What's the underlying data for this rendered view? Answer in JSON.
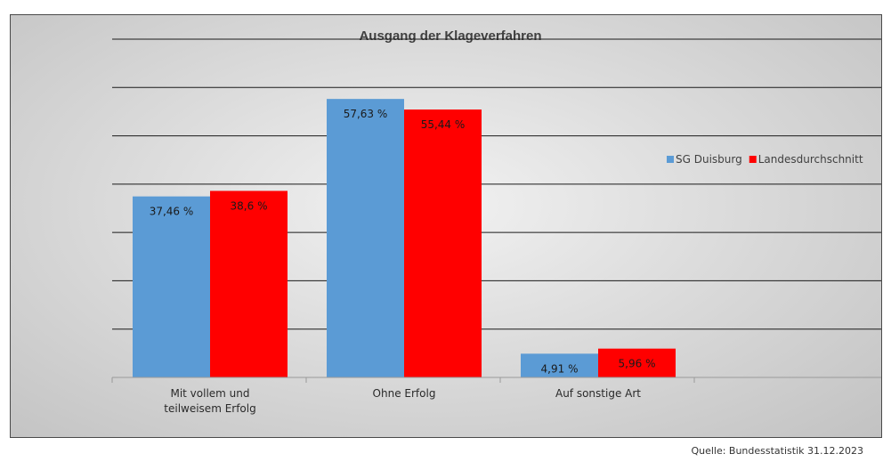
{
  "chart_data": {
    "type": "bar",
    "title": "Ausgang der Klageverfahren",
    "categories": [
      [
        "Mit vollem und",
        "teilweisem Erfolg"
      ],
      [
        "Ohne Erfolg"
      ],
      [
        "Auf sonstige Art"
      ]
    ],
    "series": [
      {
        "name": "SG Duisburg",
        "color": "#5b9bd5",
        "values": [
          37.46,
          57.63,
          4.91
        ],
        "labels": [
          "37,46 %",
          "57,63 %",
          "4,91 %"
        ]
      },
      {
        "name": "Landesdurchschnitt",
        "color": "#ff0000",
        "values": [
          38.6,
          55.44,
          5.96
        ],
        "labels": [
          "38,6 %",
          "55,44 %",
          "5,96 %"
        ]
      }
    ],
    "ylim": [
      0,
      70
    ],
    "grid": true,
    "legend_position": "right"
  },
  "source_text": "Quelle: Bundesstatistik 31.12.2023"
}
